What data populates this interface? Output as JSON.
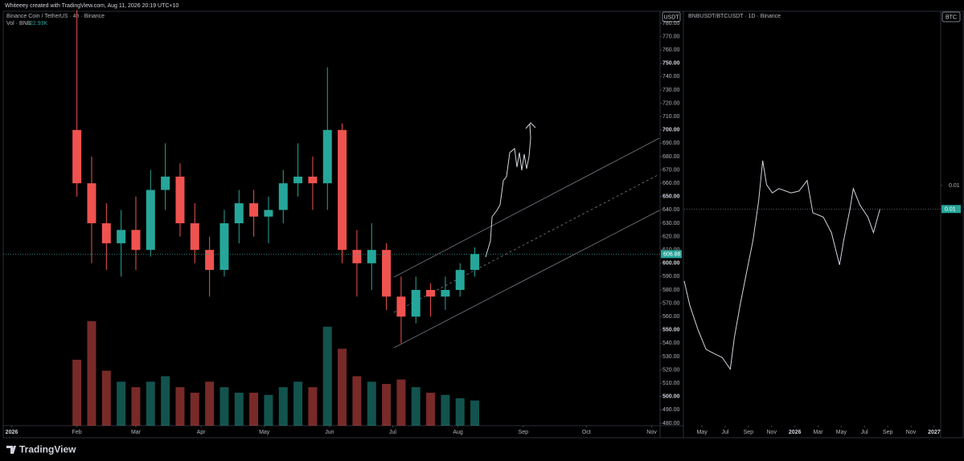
{
  "header": "Whiteeey created with TradingView.com, Aug 11, 2026 20:19 UTC+10",
  "footer": "TradingView",
  "chart_data": [
    {
      "type": "candlestick",
      "title": "Binance Coin / TetherUS · 4h · Binance",
      "currency": "USDT",
      "up_color": "#26a69a",
      "down_color": "#ef5350",
      "x": [
        31,
        38,
        45,
        52,
        59,
        66,
        73,
        80,
        87,
        94,
        101,
        108,
        115,
        122,
        129,
        136,
        143,
        150,
        157,
        164,
        171,
        178,
        185,
        192,
        199,
        206,
        213,
        220
      ],
      "open": [
        700,
        660,
        630,
        615,
        625,
        610,
        655,
        665,
        630,
        610,
        595,
        630,
        645,
        635,
        640,
        660,
        665,
        660,
        700,
        610,
        600,
        610,
        575,
        560,
        580,
        575,
        580,
        595
      ],
      "high": [
        790,
        680,
        645,
        640,
        650,
        670,
        690,
        675,
        645,
        620,
        640,
        655,
        655,
        650,
        670,
        690,
        680,
        747,
        705,
        625,
        630,
        615,
        590,
        590,
        585,
        590,
        600,
        612
      ],
      "low": [
        650,
        600,
        595,
        590,
        595,
        605,
        640,
        620,
        600,
        575,
        590,
        615,
        620,
        615,
        630,
        650,
        640,
        640,
        600,
        575,
        580,
        565,
        540,
        555,
        560,
        565,
        575,
        590
      ],
      "close": [
        660,
        630,
        615,
        625,
        610,
        655,
        665,
        630,
        610,
        595,
        630,
        645,
        635,
        640,
        660,
        665,
        660,
        700,
        610,
        600,
        610,
        575,
        560,
        580,
        575,
        580,
        595,
        606.88
      ],
      "volume": {
        "name": "Vol · BNB",
        "values": [
          60,
          95,
          50,
          40,
          35,
          40,
          45,
          35,
          30,
          40,
          35,
          30,
          30,
          28,
          35,
          40,
          35,
          90,
          70,
          45,
          40,
          38,
          42,
          35,
          30,
          28,
          25,
          22.93
        ],
        "value_labels": [
          null,
          null,
          null,
          null,
          null,
          null,
          null,
          null,
          null,
          null,
          null,
          null,
          null,
          null,
          null,
          null,
          null,
          null,
          null,
          null,
          null,
          null,
          null,
          null,
          null,
          null,
          null,
          "22.93K"
        ]
      },
      "last_price": 606.88,
      "xlim": [
        -4,
        308
      ],
      "xticks": [
        {
          "value": 0,
          "label": "2026"
        },
        {
          "value": 31,
          "label": "Feb"
        },
        {
          "value": 59,
          "label": "Mar"
        },
        {
          "value": 90,
          "label": "Apr"
        },
        {
          "value": 120,
          "label": "May"
        },
        {
          "value": 151,
          "label": "Jun"
        },
        {
          "value": 181,
          "label": "Jul"
        },
        {
          "value": 212,
          "label": "Aug"
        },
        {
          "value": 243,
          "label": "Sep"
        },
        {
          "value": 273,
          "label": "Oct"
        },
        {
          "value": 304,
          "label": "Nov"
        }
      ],
      "ylim": [
        480,
        780
      ],
      "yticks": [
        {
          "value": 480,
          "label": "480.00"
        },
        {
          "value": 490,
          "label": "490.00"
        },
        {
          "value": 500,
          "label": "500.00"
        },
        {
          "value": 510,
          "label": "510.00"
        },
        {
          "value": 520,
          "label": "520.00"
        },
        {
          "value": 530,
          "label": "530.00"
        },
        {
          "value": 540,
          "label": "540.00"
        },
        {
          "value": 550,
          "label": "550.00"
        },
        {
          "value": 560,
          "label": "560.00"
        },
        {
          "value": 570,
          "label": "570.00"
        },
        {
          "value": 580,
          "label": "580.00"
        },
        {
          "value": 590,
          "label": "590.00"
        },
        {
          "value": 600,
          "label": "600.00"
        },
        {
          "value": 610,
          "label": "610.00"
        },
        {
          "value": 620,
          "label": "620.00"
        },
        {
          "value": 630,
          "label": "630.00"
        },
        {
          "value": 640,
          "label": "640.00"
        },
        {
          "value": 650,
          "label": "650.00"
        },
        {
          "value": 660,
          "label": "660.00"
        },
        {
          "value": 670,
          "label": "670.00"
        },
        {
          "value": 680,
          "label": "680.00"
        },
        {
          "value": 690,
          "label": "690.00"
        },
        {
          "value": 700,
          "label": "700.00"
        },
        {
          "value": 710,
          "label": "710.00"
        },
        {
          "value": 720,
          "label": "720.00"
        },
        {
          "value": 730,
          "label": "730.00"
        },
        {
          "value": 740,
          "label": "740.00"
        },
        {
          "value": 750,
          "label": "750.00"
        },
        {
          "value": 760,
          "label": "760.00"
        },
        {
          "value": 770,
          "label": "770.00"
        },
        {
          "value": 780,
          "label": "780.00"
        }
      ]
    },
    {
      "type": "line",
      "title": "BNBUSDT/BTCUSDT · 1D · Binance",
      "currency": "BTC",
      "color": "#d1d4dc",
      "x": [
        -1.53,
        -1.05,
        -0.35,
        0.35,
        1.05,
        1.74,
        2.44,
        2.79,
        3.28,
        3.83,
        4.39,
        4.88,
        5.23,
        5.57,
        6.06,
        6.62,
        7.67,
        8.36,
        9.06,
        9.55,
        10.45,
        11.15,
        11.85,
        12.2,
        12.75,
        13.03,
        13.59,
        14.29,
        14.77,
        15.33
      ],
      "values": [
        0.00846,
        0.00807,
        0.00768,
        0.00736,
        0.00729,
        0.00723,
        0.00704,
        0.00755,
        0.00807,
        0.00859,
        0.00911,
        0.00975,
        0.0104,
        0.01001,
        0.00988,
        0.00995,
        0.00988,
        0.00991,
        0.01008,
        0.00956,
        0.00949,
        0.00924,
        0.00872,
        0.00911,
        0.00962,
        0.00995,
        0.00969,
        0.00949,
        0.00924,
        0.00962
      ],
      "last_price": {
        "value": 0.00962,
        "label": "0.01"
      },
      "xlim": [
        -1.53,
        20.56
      ],
      "xticks": [
        {
          "value": 0,
          "label": "May"
        },
        {
          "value": 2,
          "label": "Jul"
        },
        {
          "value": 4,
          "label": "Sep"
        },
        {
          "value": 6,
          "label": "Nov"
        },
        {
          "value": 8,
          "label": "2026"
        },
        {
          "value": 10,
          "label": "Mar"
        },
        {
          "value": 12,
          "label": "May"
        },
        {
          "value": 14,
          "label": "Jul"
        },
        {
          "value": 16,
          "label": "Sep"
        },
        {
          "value": 18,
          "label": "Nov"
        },
        {
          "value": 20,
          "label": "2027"
        }
      ],
      "ylim": [
        0.006,
        0.0126
      ],
      "yticks": [
        0.01
      ]
    }
  ]
}
